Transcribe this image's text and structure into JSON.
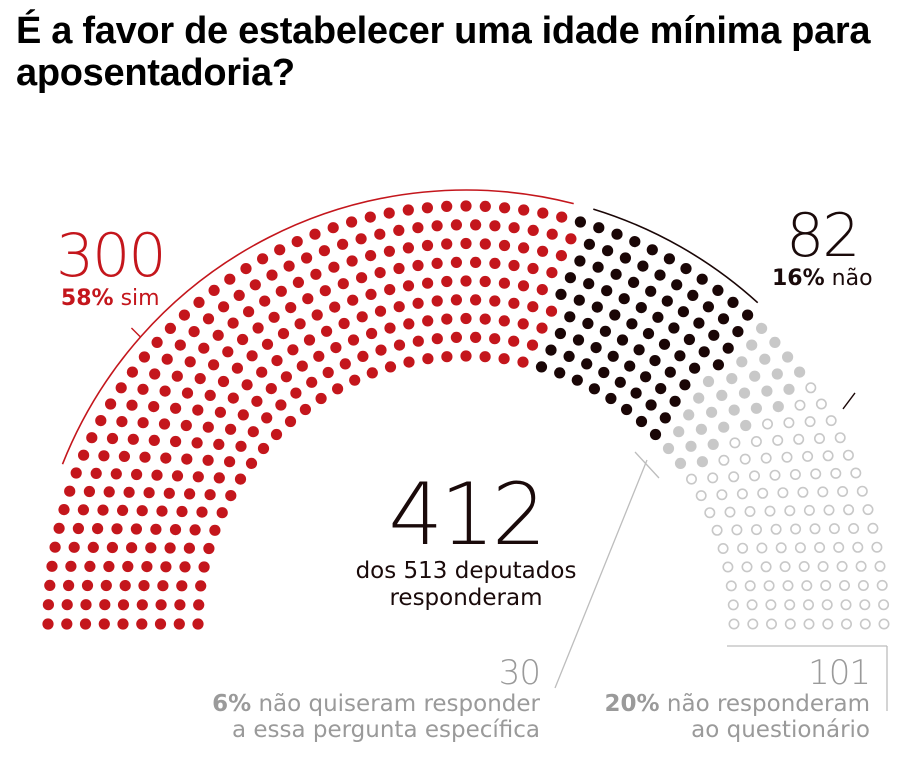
{
  "title": "É a favor de estabelecer uma idade mínima para aposentadoria?",
  "labels": {
    "sim": {
      "count": "300",
      "percent": "58%",
      "text": "sim"
    },
    "nao": {
      "count": "82",
      "percent": "16%",
      "text": "não"
    },
    "total": {
      "count": "412",
      "line1": "dos 513 deputados",
      "line2": "responderam"
    },
    "nao_quiseram": {
      "count": "30",
      "percent": "6%",
      "line1_text": "não quiseram responder",
      "line2": "a essa pergunta específica"
    },
    "nao_responderam": {
      "count": "101",
      "percent": "20%",
      "line1_text": "não responderam",
      "line2": "ao questionário"
    }
  },
  "colors": {
    "sim": "#c4161c",
    "nao": "#1a0606",
    "nao_quiseram": "#c8c8c8",
    "nao_responderam": "#c8c8c8"
  },
  "chart_data": {
    "type": "parliament",
    "title": "É a favor de estabelecer uma idade mínima para aposentadoria?",
    "total_seats": 513,
    "rows": 9,
    "series": [
      {
        "name": "sim",
        "label": "58% sim",
        "value": 300,
        "percent": 58,
        "style": "filled",
        "color": "#c4161c"
      },
      {
        "name": "não",
        "label": "16% não",
        "value": 82,
        "percent": 16,
        "style": "filled",
        "color": "#1a0606"
      },
      {
        "name": "não quiseram responder a essa pergunta específica",
        "value": 30,
        "percent": 6,
        "style": "filled",
        "color": "#c8c8c8"
      },
      {
        "name": "não responderam ao questionário",
        "value": 101,
        "percent": 20,
        "style": "hollow",
        "color": "#c8c8c8"
      }
    ],
    "annotations": [
      "412 dos 513 deputados responderam"
    ]
  }
}
